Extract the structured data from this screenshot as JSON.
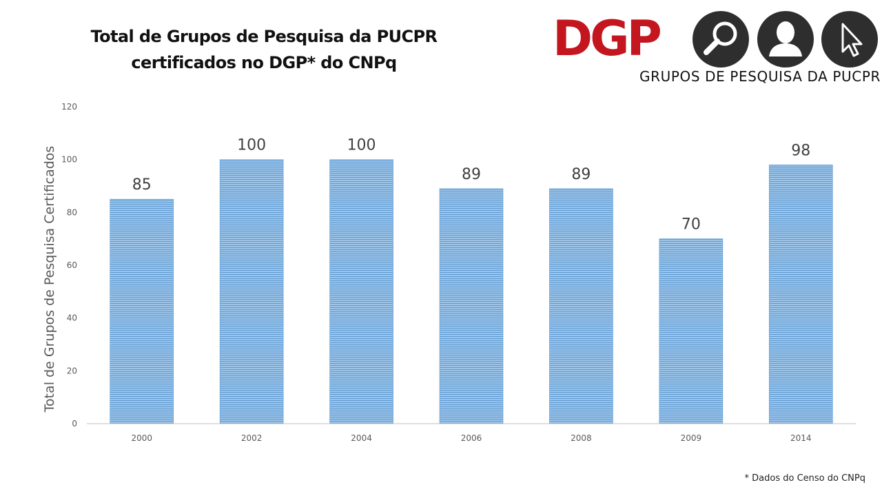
{
  "header": {
    "title_line1": "Total de Grupos de Pesquisa da PUCPR",
    "title_line2": "certificados no DGP* do CNPq"
  },
  "logo": {
    "wordmark": "DGP",
    "caption": "GRUPOS DE PESQUISA DA PUCPR",
    "icons": [
      "magnifier-icon",
      "person-icon",
      "cursor-icon"
    ],
    "colors": {
      "wordmark": "#c3161f",
      "circle": "#2e2e2e",
      "glyph": "#ffffff"
    }
  },
  "footnote": "* Dados do Censo do CNPq",
  "chart_data": {
    "type": "bar",
    "categories": [
      "2000",
      "2002",
      "2004",
      "2006",
      "2008",
      "2009",
      "2014"
    ],
    "values": [
      85,
      100,
      100,
      89,
      89,
      70,
      98
    ],
    "data_labels": [
      "85",
      "100",
      "100",
      "89",
      "89",
      "70",
      "98"
    ],
    "ylabel": "Total de Grupos de Pesquisa Certificados",
    "xlabel": "",
    "ylim": [
      0,
      120
    ],
    "yticks": [
      0,
      20,
      40,
      60,
      80,
      100,
      120
    ],
    "grid": false,
    "legend": "none",
    "bar_color": "#9dc3e6",
    "bar_stripe_color": "#5b9bd5"
  }
}
